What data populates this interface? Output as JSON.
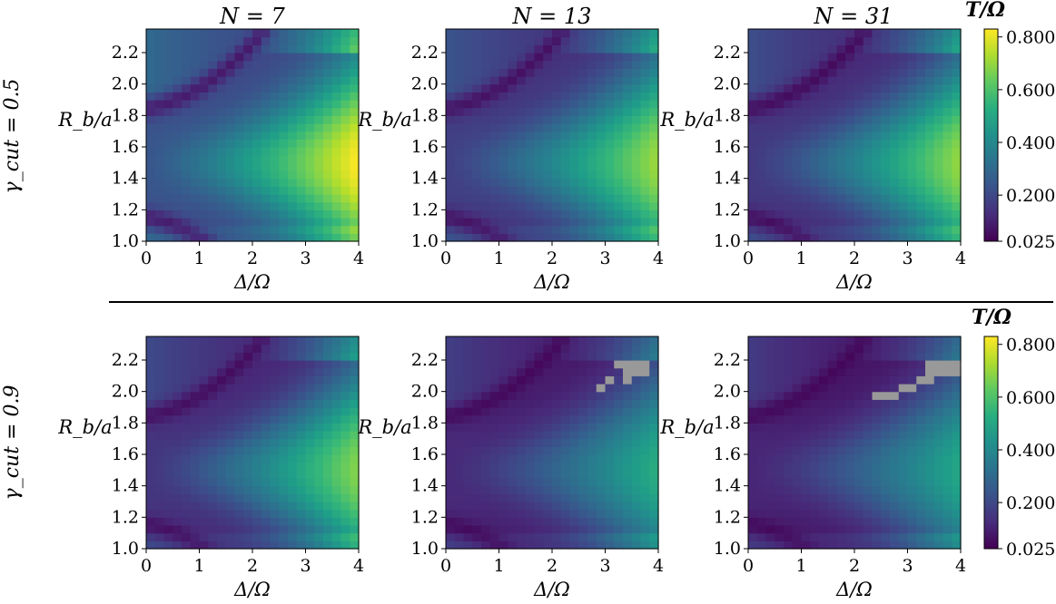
{
  "figure": {
    "row_labels": [
      "γ_cut = 0.5",
      "γ_cut = 0.9"
    ],
    "column_titles": [
      "N = 7",
      "N = 13",
      "N = 31"
    ],
    "xlabel": "Δ/Ω",
    "ylabel": "R_b/a",
    "colorbar_label": "T/Ω",
    "colorbar_ticks": [
      "0.025",
      "0.200",
      "0.400",
      "0.600",
      "0.800"
    ],
    "x_ticks": [
      "0",
      "1",
      "2",
      "3",
      "4"
    ],
    "y_ticks": [
      "1.0",
      "1.2",
      "1.4",
      "1.6",
      "1.8",
      "2.0",
      "2.2"
    ]
  },
  "chart_data": {
    "type": "heatmap",
    "colormap": "viridis",
    "masked_color": "#999999",
    "xlabel": "Δ/Ω",
    "ylabel": "R_b/a",
    "xlim": [
      0,
      4
    ],
    "ylim": [
      1.0,
      2.35
    ],
    "clim": [
      0.025,
      0.83
    ],
    "grid": false,
    "colorbar_label": "T/Ω",
    "colorbar_ticks": [
      0.025,
      0.2,
      0.4,
      0.6,
      0.8
    ],
    "grid_resolution": {
      "nx": 24,
      "ny": 27
    },
    "panels": [
      {
        "row": 0,
        "col": 0,
        "title": "N = 7",
        "gamma_cut": 0.5,
        "N": 7,
        "peak": 0.83,
        "ridge_base": 0.18,
        "trough": 0.05,
        "masked_cells": []
      },
      {
        "row": 0,
        "col": 1,
        "title": "N = 13",
        "gamma_cut": 0.5,
        "N": 13,
        "peak": 0.71,
        "ridge_base": 0.12,
        "trough": 0.04,
        "masked_cells": []
      },
      {
        "row": 0,
        "col": 2,
        "title": "N = 31",
        "gamma_cut": 0.5,
        "N": 31,
        "peak": 0.7,
        "ridge_base": 0.1,
        "trough": 0.03,
        "masked_cells": []
      },
      {
        "row": 1,
        "col": 0,
        "title": "",
        "gamma_cut": 0.9,
        "N": 7,
        "peak": 0.68,
        "ridge_base": 0.09,
        "trough": 0.04,
        "masked_cells": []
      },
      {
        "row": 1,
        "col": 1,
        "title": "",
        "gamma_cut": 0.9,
        "N": 13,
        "peak": 0.52,
        "ridge_base": 0.06,
        "trough": 0.03,
        "masked_cells": [
          [
            3.2,
            2.15
          ],
          [
            3.4,
            2.15
          ],
          [
            3.6,
            2.15
          ],
          [
            3.4,
            2.1
          ],
          [
            3.6,
            2.1
          ],
          [
            3.4,
            2.05
          ],
          [
            3.0,
            2.05
          ],
          [
            2.8,
            2.0
          ]
        ]
      },
      {
        "row": 1,
        "col": 2,
        "title": "",
        "gamma_cut": 0.9,
        "N": 31,
        "peak": 0.5,
        "ridge_base": 0.05,
        "trough": 0.03,
        "masked_cells": [
          [
            3.4,
            2.15
          ],
          [
            3.6,
            2.15
          ],
          [
            3.8,
            2.15
          ],
          [
            3.4,
            2.1
          ],
          [
            3.6,
            2.1
          ],
          [
            3.8,
            2.1
          ],
          [
            3.2,
            2.05
          ],
          [
            3.4,
            2.05
          ],
          [
            2.8,
            2.0
          ],
          [
            3.0,
            2.0
          ],
          [
            2.4,
            1.95
          ],
          [
            2.6,
            1.95
          ]
        ]
      }
    ]
  }
}
